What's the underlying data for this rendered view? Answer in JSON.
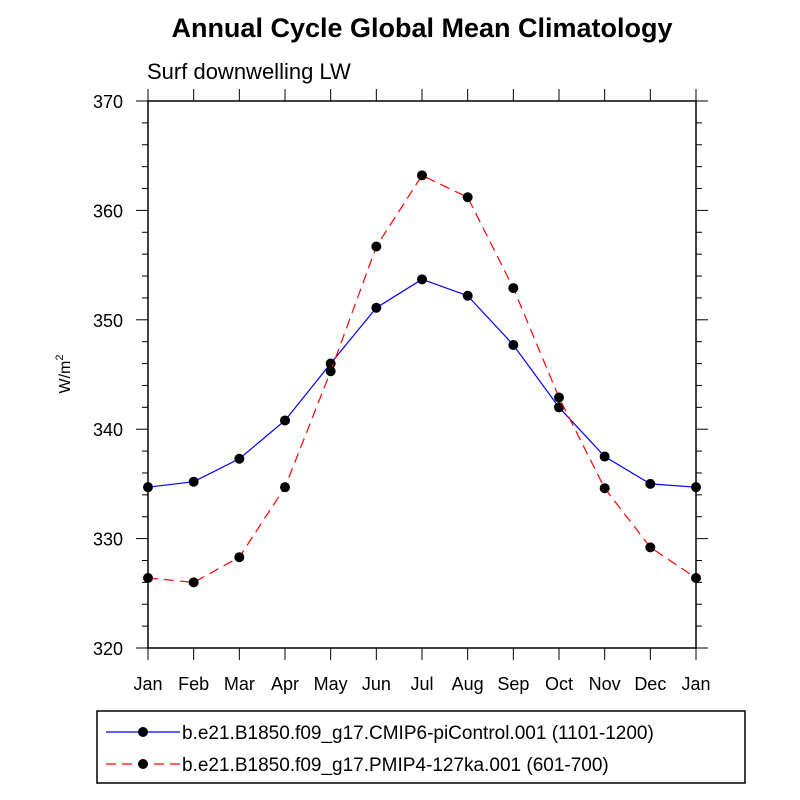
{
  "chart_data": {
    "type": "line",
    "title": "Annual Cycle Global Mean Climatology",
    "subtitle": "Surf downwelling LW",
    "ylabel": "W/m",
    "ylabel_superscript": "2",
    "xlabel": "",
    "ylim": [
      320,
      370
    ],
    "yticks": [
      320,
      330,
      340,
      350,
      360,
      370
    ],
    "categories": [
      "Jan",
      "Feb",
      "Mar",
      "Apr",
      "May",
      "Jun",
      "Jul",
      "Aug",
      "Sep",
      "Oct",
      "Nov",
      "Dec",
      "Jan"
    ],
    "grid": false,
    "legend_position": "bottom",
    "series": [
      {
        "name": "b.e21.B1850.f09_g17.CMIP6-piControl.001 (1101-1200)",
        "color": "#0000ff",
        "dash": "solid",
        "values": [
          334.7,
          335.2,
          337.3,
          340.8,
          346.0,
          351.1,
          353.7,
          352.2,
          347.7,
          342.0,
          337.5,
          335.0,
          334.7
        ]
      },
      {
        "name": "b.e21.B1850.f09_g17.PMIP4-127ka.001 (601-700)",
        "color": "#ff0000",
        "dash": "dashed",
        "values": [
          326.4,
          326.0,
          328.3,
          334.7,
          345.3,
          356.7,
          363.2,
          361.2,
          352.9,
          342.9,
          334.6,
          329.2,
          326.4
        ]
      }
    ]
  }
}
